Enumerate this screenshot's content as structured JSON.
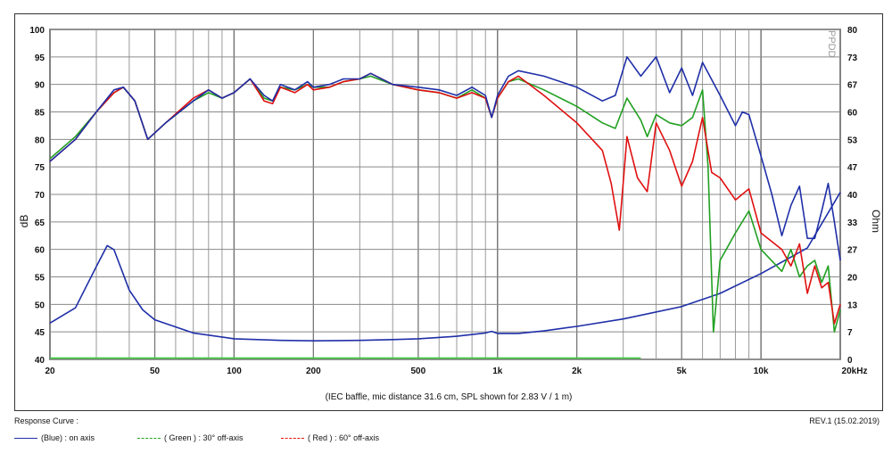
{
  "chart_data": {
    "type": "line",
    "x_scale": "log",
    "xlim": [
      20,
      20000
    ],
    "ylim_left": [
      40,
      100
    ],
    "ylim_right": [
      0,
      80
    ],
    "x_ticks": [
      20,
      50,
      100,
      200,
      500,
      1000,
      2000,
      5000,
      10000,
      20000
    ],
    "x_tick_labels": [
      "20",
      "50",
      "100",
      "200",
      "500",
      "1k",
      "2k",
      "5k",
      "10k",
      "20kHz"
    ],
    "y_ticks_left": [
      40,
      45,
      50,
      55,
      60,
      65,
      70,
      75,
      80,
      85,
      90,
      95,
      100
    ],
    "y_tick_labels_right": [
      "0",
      "7",
      "13",
      "20",
      "27",
      "33",
      "40",
      "47",
      "53",
      "60",
      "67",
      "73",
      "80"
    ],
    "ylabel_left": "dB",
    "ylabel_right": "Ohm",
    "footnote": "(IEC baffle, mic distance 31.6 cm, SPL shown for 2.83 V / 1 m)",
    "watermark": "PPDD",
    "grid": true,
    "series": [
      {
        "name": "(Blue) : on axis",
        "color": "#1f2fa8",
        "points": [
          [
            20,
            76
          ],
          [
            25,
            80
          ],
          [
            30,
            85
          ],
          [
            35,
            89
          ],
          [
            38,
            89.5
          ],
          [
            42,
            87
          ],
          [
            47,
            80
          ],
          [
            55,
            83
          ],
          [
            70,
            87
          ],
          [
            80,
            89
          ],
          [
            90,
            87.5
          ],
          [
            100,
            88.5
          ],
          [
            115,
            91
          ],
          [
            130,
            88
          ],
          [
            140,
            87
          ],
          [
            150,
            90
          ],
          [
            170,
            89
          ],
          [
            190,
            90.5
          ],
          [
            200,
            89.5
          ],
          [
            230,
            90
          ],
          [
            260,
            91
          ],
          [
            300,
            91
          ],
          [
            330,
            92
          ],
          [
            400,
            90
          ],
          [
            500,
            89.5
          ],
          [
            600,
            89
          ],
          [
            700,
            88
          ],
          [
            800,
            89.5
          ],
          [
            900,
            88
          ],
          [
            950,
            84
          ],
          [
            1000,
            88
          ],
          [
            1100,
            91.5
          ],
          [
            1200,
            92.5
          ],
          [
            1500,
            91.5
          ],
          [
            2000,
            89.5
          ],
          [
            2500,
            87
          ],
          [
            2800,
            88
          ],
          [
            3100,
            95
          ],
          [
            3500,
            91.5
          ],
          [
            4000,
            95
          ],
          [
            4500,
            88.5
          ],
          [
            5000,
            93
          ],
          [
            5500,
            88
          ],
          [
            6000,
            94
          ],
          [
            7000,
            88
          ],
          [
            8000,
            82.5
          ],
          [
            8500,
            85
          ],
          [
            9000,
            84.5
          ],
          [
            10000,
            77
          ],
          [
            11000,
            70
          ],
          [
            12000,
            62.5
          ],
          [
            13000,
            68
          ],
          [
            14000,
            71.5
          ],
          [
            15000,
            62
          ],
          [
            16000,
            62
          ],
          [
            17000,
            67
          ],
          [
            18000,
            72
          ],
          [
            19000,
            65
          ],
          [
            20000,
            58
          ]
        ]
      },
      {
        "name": "( Green ) : 30° off-axis",
        "color": "#22a022",
        "points": [
          [
            20,
            76.5
          ],
          [
            25,
            80.5
          ],
          [
            30,
            85
          ],
          [
            35,
            88.5
          ],
          [
            38,
            89.5
          ],
          [
            42,
            87
          ],
          [
            47,
            80
          ],
          [
            55,
            83
          ],
          [
            70,
            87
          ],
          [
            80,
            88.5
          ],
          [
            90,
            87.5
          ],
          [
            100,
            88.5
          ],
          [
            115,
            91
          ],
          [
            130,
            87.5
          ],
          [
            140,
            87
          ],
          [
            150,
            89.5
          ],
          [
            170,
            89
          ],
          [
            190,
            90
          ],
          [
            200,
            89.5
          ],
          [
            230,
            89.5
          ],
          [
            260,
            90.5
          ],
          [
            300,
            91
          ],
          [
            330,
            91.5
          ],
          [
            400,
            90
          ],
          [
            500,
            89
          ],
          [
            600,
            88.5
          ],
          [
            700,
            87.5
          ],
          [
            800,
            89
          ],
          [
            900,
            87.5
          ],
          [
            950,
            84
          ],
          [
            1000,
            87.5
          ],
          [
            1100,
            90.5
          ],
          [
            1200,
            91
          ],
          [
            1500,
            89
          ],
          [
            2000,
            86
          ],
          [
            2500,
            83
          ],
          [
            2800,
            82
          ],
          [
            3100,
            87.5
          ],
          [
            3500,
            83.5
          ],
          [
            3700,
            80.5
          ],
          [
            4000,
            84.5
          ],
          [
            4500,
            83
          ],
          [
            5000,
            82.5
          ],
          [
            5500,
            84
          ],
          [
            6000,
            89
          ],
          [
            6300,
            75
          ],
          [
            6600,
            45
          ],
          [
            7000,
            58
          ],
          [
            8000,
            63
          ],
          [
            9000,
            67
          ],
          [
            10000,
            60
          ],
          [
            12000,
            56
          ],
          [
            13000,
            60
          ],
          [
            14000,
            55
          ],
          [
            15000,
            57
          ],
          [
            16000,
            58
          ],
          [
            17000,
            54
          ],
          [
            18000,
            57
          ],
          [
            19000,
            45
          ],
          [
            20000,
            49
          ]
        ]
      },
      {
        "name": "( Red ) : 60° off-axis",
        "color": "#e01010",
        "points": [
          [
            20,
            76
          ],
          [
            25,
            80
          ],
          [
            30,
            85
          ],
          [
            35,
            88.5
          ],
          [
            38,
            89.5
          ],
          [
            42,
            87
          ],
          [
            47,
            80
          ],
          [
            55,
            83
          ],
          [
            70,
            87.5
          ],
          [
            80,
            89
          ],
          [
            90,
            87.5
          ],
          [
            100,
            88.5
          ],
          [
            115,
            91
          ],
          [
            130,
            87
          ],
          [
            140,
            86.5
          ],
          [
            150,
            89.5
          ],
          [
            170,
            88.5
          ],
          [
            190,
            90
          ],
          [
            200,
            89
          ],
          [
            230,
            89.5
          ],
          [
            260,
            90.5
          ],
          [
            300,
            91
          ],
          [
            330,
            92
          ],
          [
            400,
            90
          ],
          [
            500,
            89
          ],
          [
            600,
            88.5
          ],
          [
            700,
            87.5
          ],
          [
            800,
            88.5
          ],
          [
            900,
            87.5
          ],
          [
            950,
            84
          ],
          [
            1000,
            87.5
          ],
          [
            1100,
            90.5
          ],
          [
            1200,
            91.5
          ],
          [
            1500,
            88
          ],
          [
            2000,
            83
          ],
          [
            2500,
            78
          ],
          [
            2700,
            72
          ],
          [
            2900,
            63.5
          ],
          [
            3100,
            80.5
          ],
          [
            3400,
            73
          ],
          [
            3700,
            70.5
          ],
          [
            4000,
            83
          ],
          [
            4500,
            78
          ],
          [
            5000,
            71.5
          ],
          [
            5500,
            76
          ],
          [
            6000,
            84
          ],
          [
            6500,
            74
          ],
          [
            7000,
            73
          ],
          [
            8000,
            69
          ],
          [
            9000,
            71
          ],
          [
            10000,
            63
          ],
          [
            12000,
            60
          ],
          [
            13000,
            57
          ],
          [
            14000,
            61
          ],
          [
            15000,
            52
          ],
          [
            16000,
            57
          ],
          [
            17000,
            53
          ],
          [
            18000,
            54
          ],
          [
            19000,
            46.5
          ],
          [
            20000,
            50
          ]
        ]
      },
      {
        "name": "Impedance",
        "color": "#1f2fa8",
        "axis": "right",
        "points": [
          [
            20,
            8.8
          ],
          [
            25,
            12.5
          ],
          [
            30,
            22.5
          ],
          [
            33,
            27.6
          ],
          [
            35,
            26.6
          ],
          [
            40,
            16.8
          ],
          [
            45,
            12
          ],
          [
            50,
            9.6
          ],
          [
            70,
            6.4
          ],
          [
            100,
            5
          ],
          [
            150,
            4.6
          ],
          [
            200,
            4.5
          ],
          [
            300,
            4.6
          ],
          [
            400,
            4.8
          ],
          [
            500,
            5
          ],
          [
            700,
            5.6
          ],
          [
            900,
            6.4
          ],
          [
            950,
            6.8
          ],
          [
            1000,
            6.3
          ],
          [
            1200,
            6.3
          ],
          [
            1500,
            6.9
          ],
          [
            2000,
            8
          ],
          [
            3000,
            9.8
          ],
          [
            5000,
            12.8
          ],
          [
            7000,
            16
          ],
          [
            10000,
            20.8
          ],
          [
            15000,
            27
          ],
          [
            20000,
            40.5
          ]
        ]
      }
    ]
  },
  "legend": {
    "title": "Response Curve :",
    "items": [
      {
        "label": "(Blue)  : on axis",
        "color": "#1f2fa8"
      },
      {
        "label": "( Green ) : 30° off-axis",
        "color": "#22a022"
      },
      {
        "label": "( Red ) : 60° off-axis",
        "color": "#e01010"
      }
    ]
  },
  "revision": "REV.1 (15.02.2019)"
}
